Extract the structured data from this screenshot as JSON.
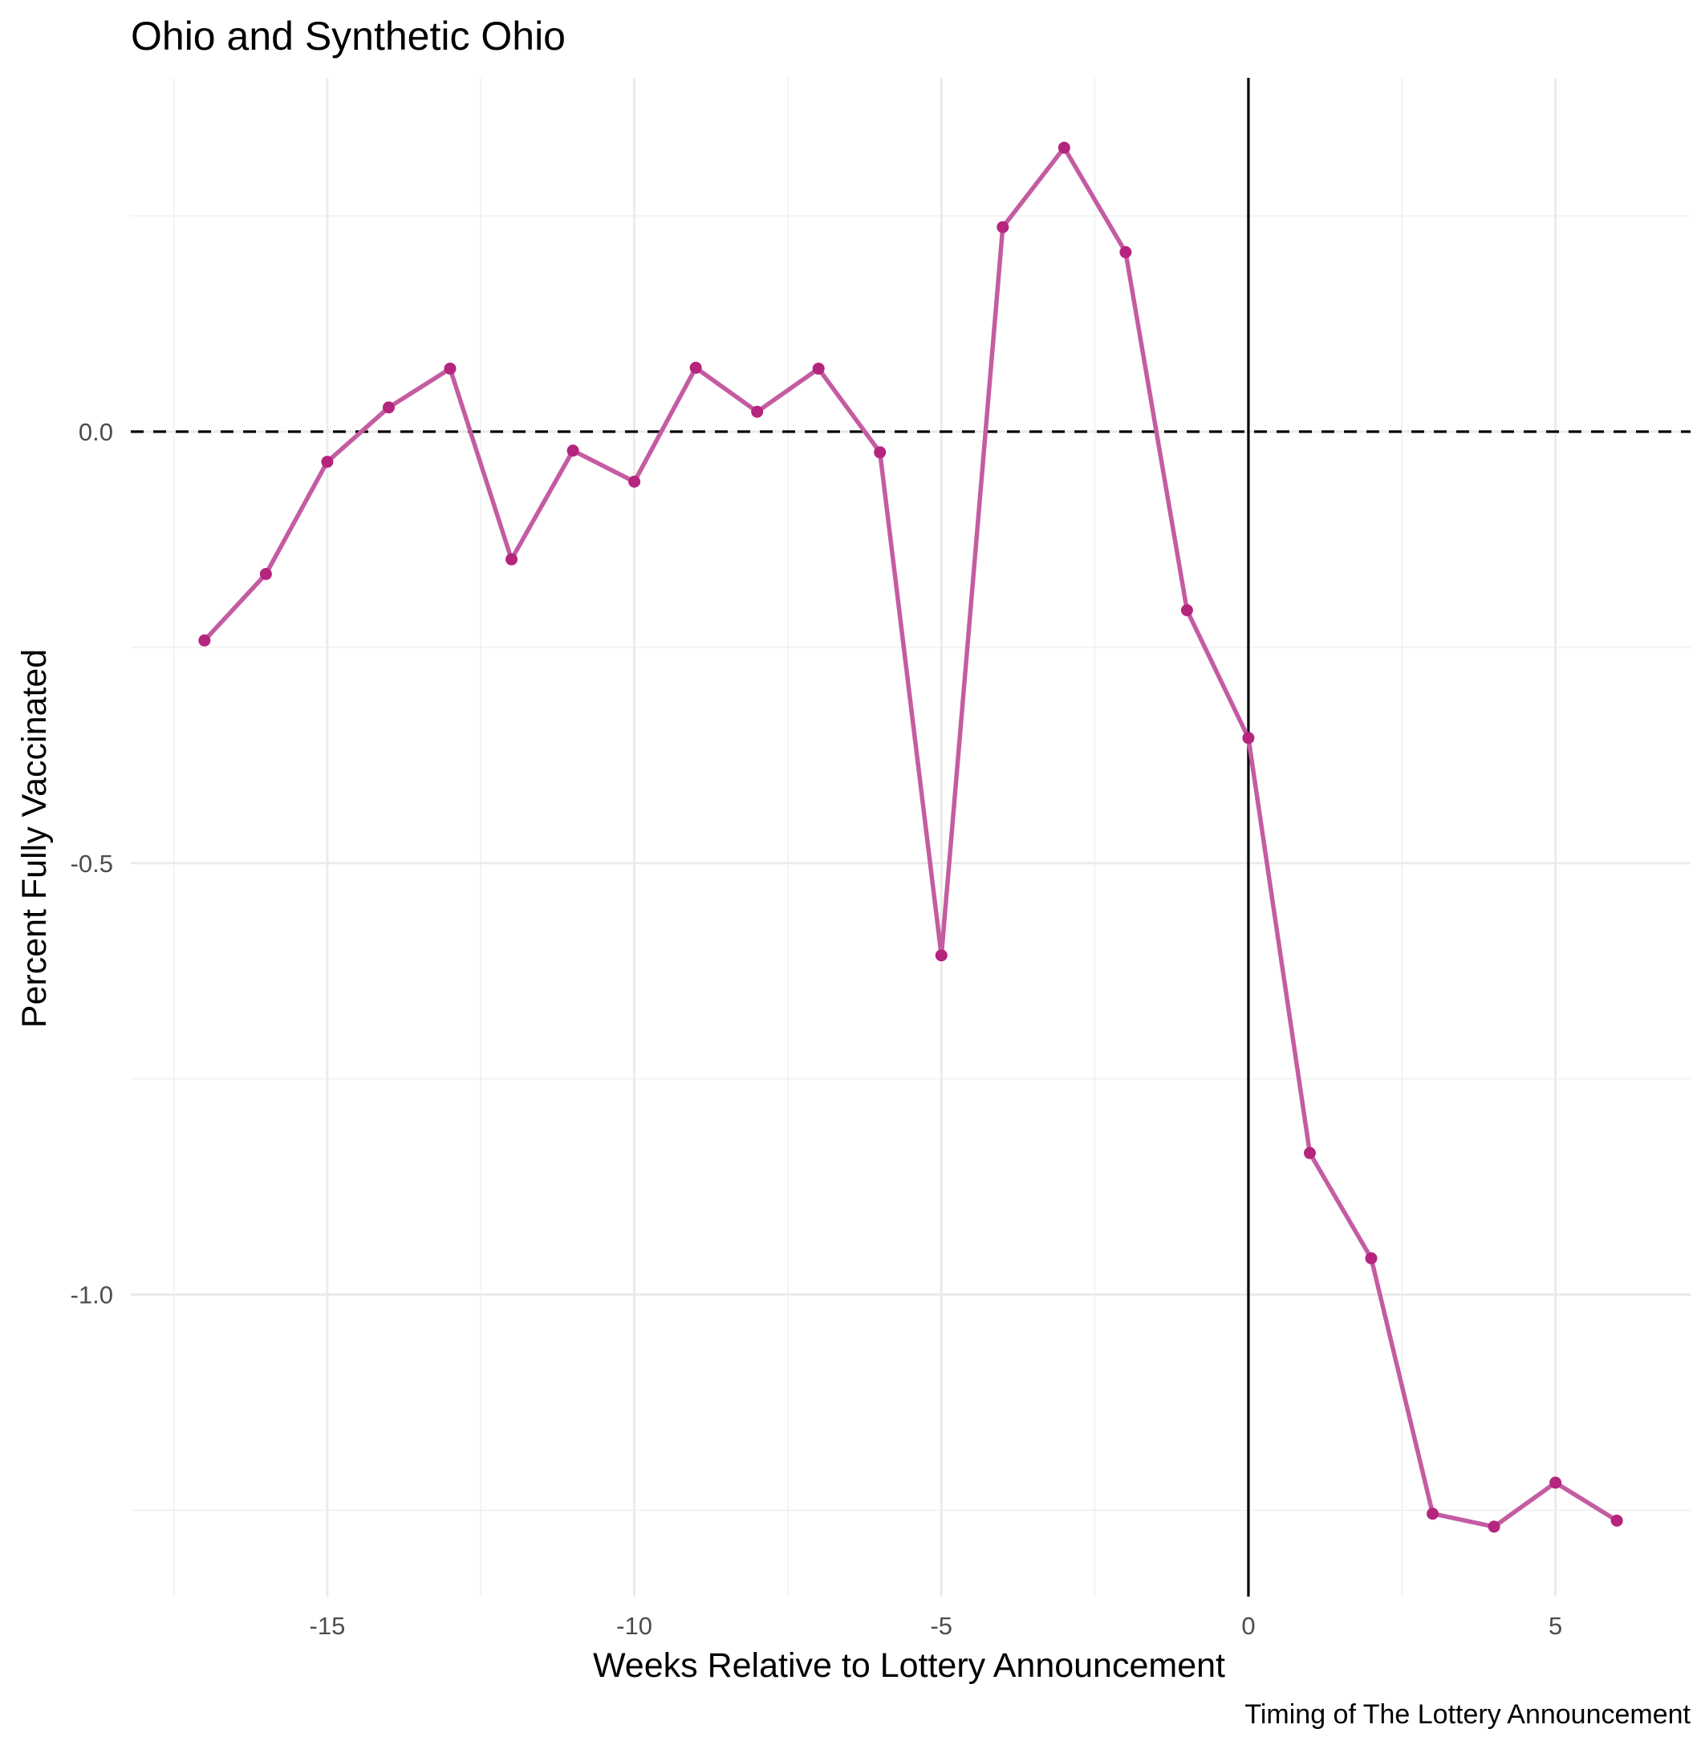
{
  "chart_data": {
    "type": "line",
    "title": "Ohio and Synthetic Ohio",
    "xlabel": "Weeks Relative to Lottery Announcement",
    "ylabel": "Percent Fully Vaccinated",
    "caption": "Timing of The Lottery Announcement",
    "xlim": [
      -18.2,
      7.2
    ],
    "ylim": [
      -1.35,
      0.41
    ],
    "x_ticks": [
      -15,
      -10,
      -5,
      0,
      5
    ],
    "x_tick_labels": [
      "-15",
      "-10",
      "-5",
      "0",
      "5"
    ],
    "y_ticks": [
      0.0,
      -0.5,
      -1.0
    ],
    "y_tick_labels": [
      "0.0",
      "-0.5",
      "-1.0"
    ],
    "x_minor_grid": [
      -17.5,
      -12.5,
      -7.5,
      -2.5,
      2.5
    ],
    "y_minor_grid": [
      0.25,
      -0.25,
      -0.75,
      -1.25
    ],
    "grid": true,
    "hline": {
      "y": 0,
      "style": "dashed",
      "color": "#000000"
    },
    "vline": {
      "x": 0,
      "style": "solid",
      "color": "#000000"
    },
    "line_color": "#c45ca2",
    "point_color": "#b5247d",
    "x": [
      -17,
      -16,
      -15,
      -14,
      -13,
      -12,
      -11,
      -10,
      -9,
      -8,
      -7,
      -6,
      -5,
      -4,
      -3,
      -2,
      -1,
      0,
      1,
      2,
      3,
      4,
      5,
      6
    ],
    "values": [
      -0.242,
      -0.165,
      -0.035,
      0.028,
      0.073,
      -0.148,
      -0.022,
      -0.058,
      0.074,
      0.023,
      0.073,
      -0.024,
      -0.607,
      0.237,
      0.329,
      0.208,
      -0.207,
      -0.355,
      -0.836,
      -0.958,
      -1.254,
      -1.269,
      -1.218,
      -1.262
    ]
  }
}
